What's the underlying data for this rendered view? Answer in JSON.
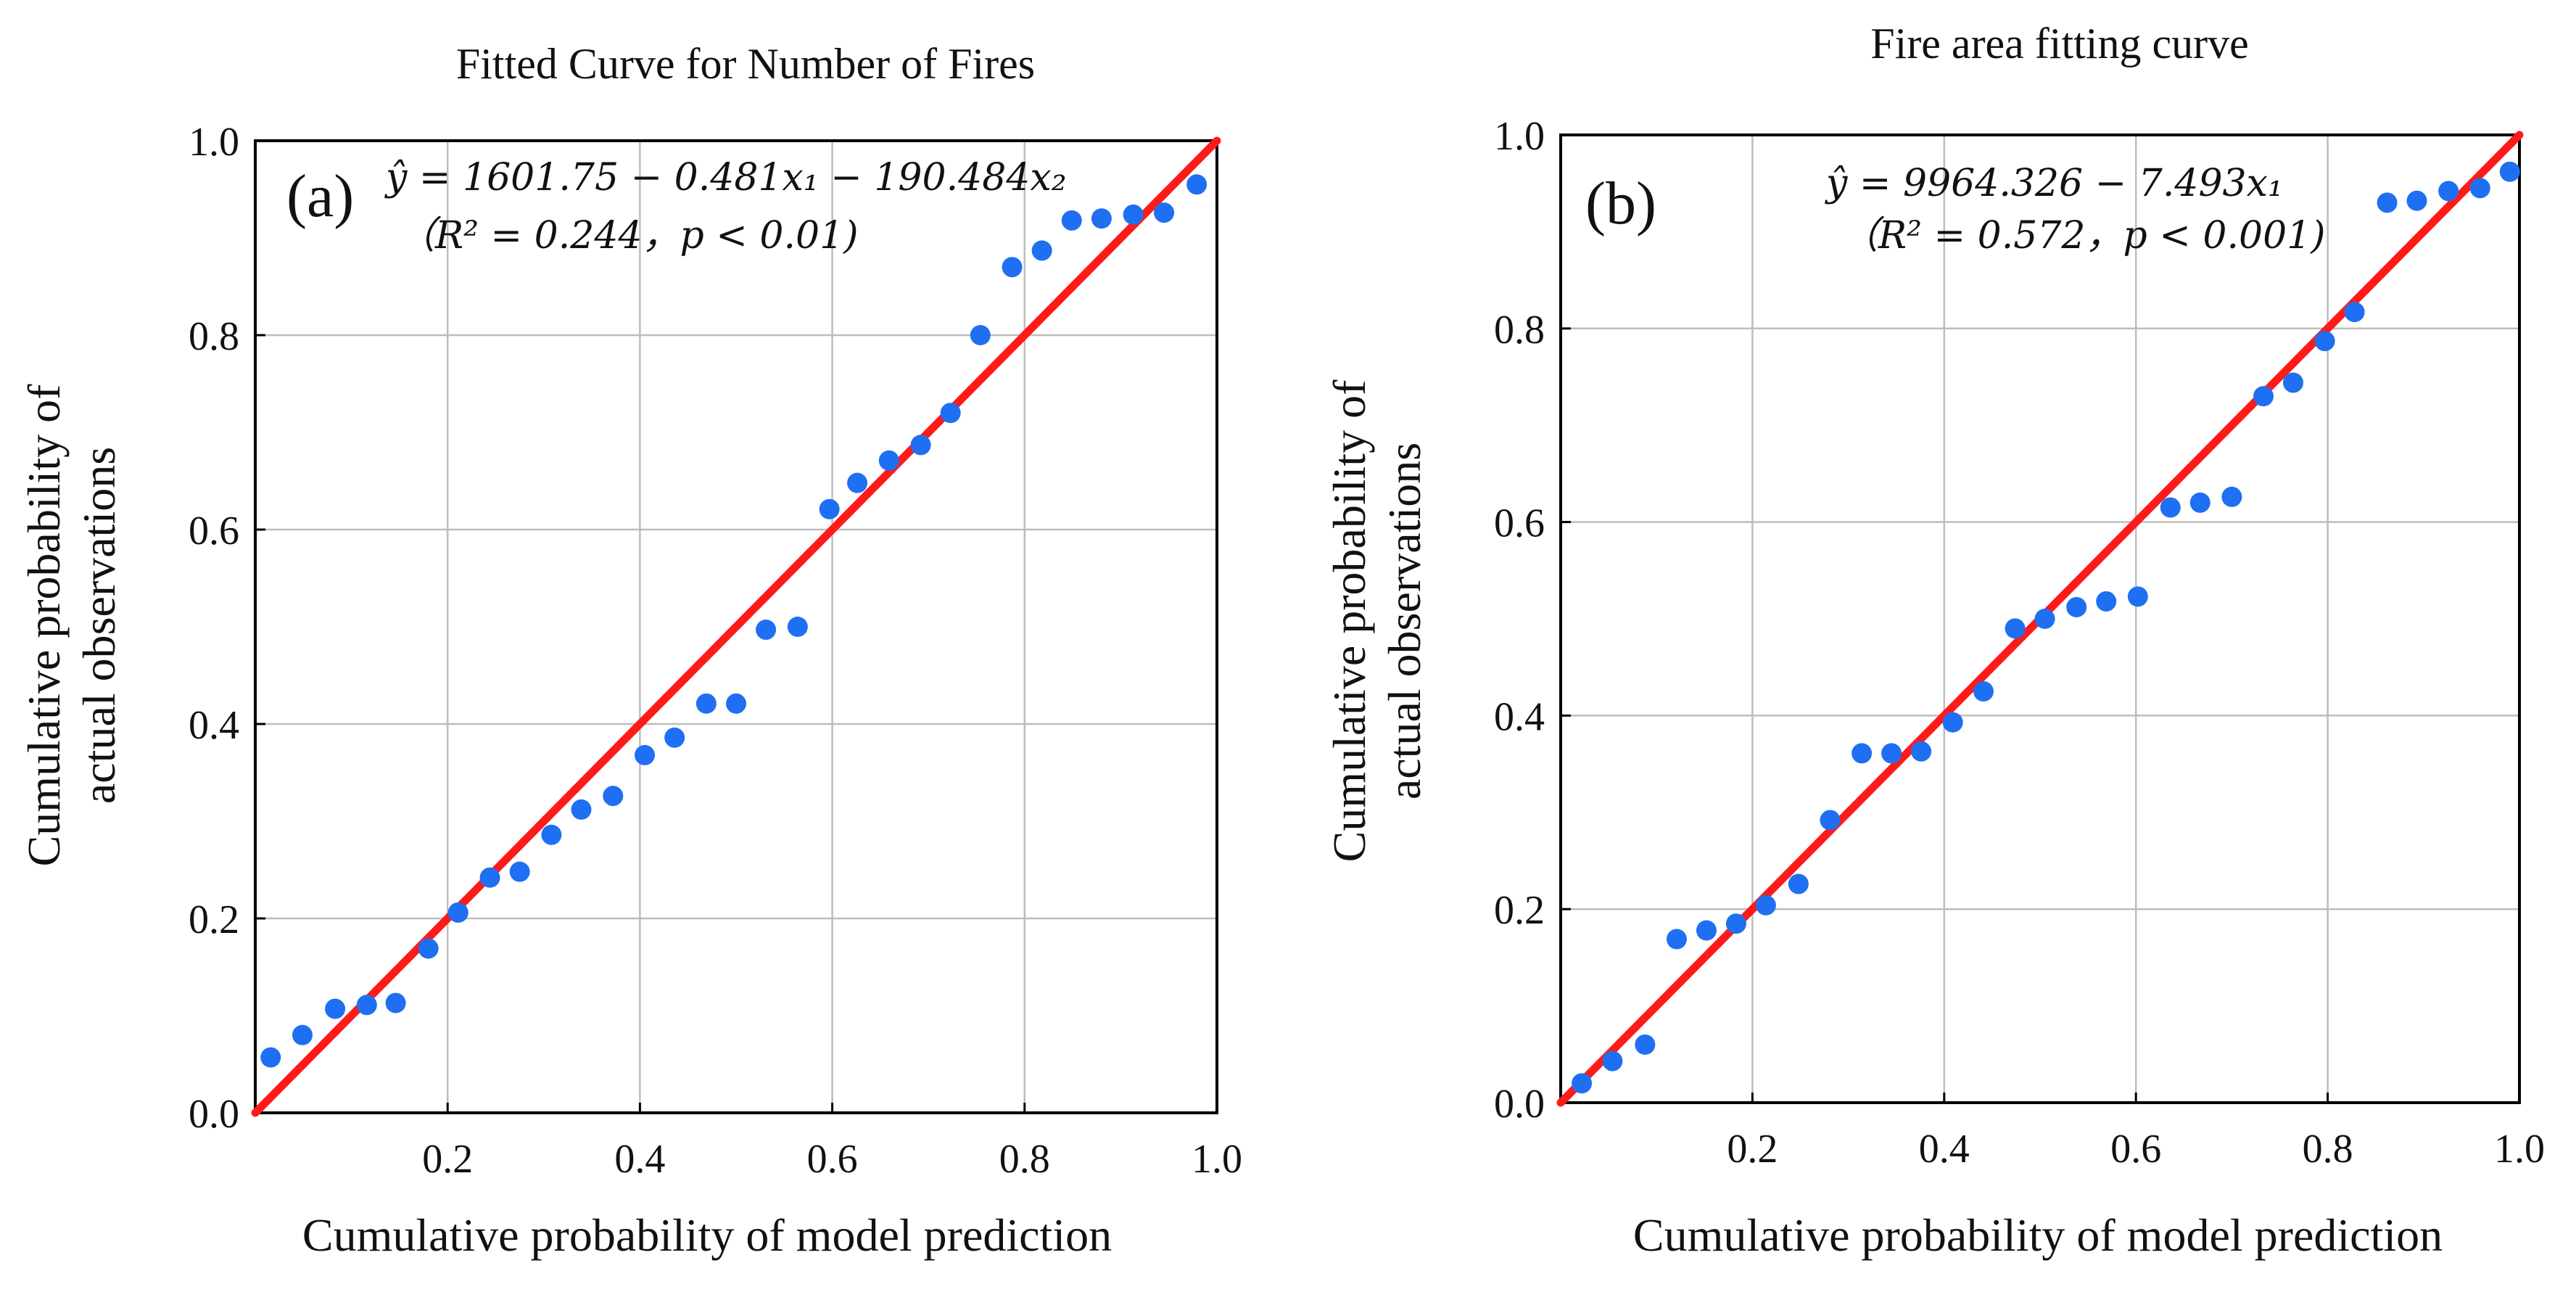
{
  "chart_data": [
    {
      "type": "scatter",
      "panel_label": "(a)",
      "title": "Fitted Curve for Number of Fires",
      "xlabel": "Cumulative probability of model prediction",
      "ylabel_line1": "Cumulative probability of",
      "ylabel_line2": "actual observations",
      "equation": "ŷ = 1601.75 − 0.481x₁ − 190.484x₂",
      "stats": "（R² = 0.244，p < 0.01)",
      "xlim": [
        0,
        1.0
      ],
      "ylim": [
        0,
        1.0
      ],
      "x_ticks": [
        "0.2",
        "0.4",
        "0.6",
        "0.8",
        "1.0"
      ],
      "y_ticks": [
        "0.0",
        "0.2",
        "0.4",
        "0.6",
        "0.8",
        "1.0"
      ],
      "grid": true,
      "reference_line": {
        "from": [
          0,
          0
        ],
        "to": [
          1,
          1
        ],
        "color": "#ff1a1a"
      },
      "point_color": "#1f6ff2",
      "points": [
        {
          "x": 0.016,
          "y": 0.057
        },
        {
          "x": 0.049,
          "y": 0.08
        },
        {
          "x": 0.083,
          "y": 0.107
        },
        {
          "x": 0.116,
          "y": 0.111
        },
        {
          "x": 0.146,
          "y": 0.113
        },
        {
          "x": 0.18,
          "y": 0.169
        },
        {
          "x": 0.211,
          "y": 0.206
        },
        {
          "x": 0.244,
          "y": 0.242
        },
        {
          "x": 0.275,
          "y": 0.248
        },
        {
          "x": 0.308,
          "y": 0.286
        },
        {
          "x": 0.339,
          "y": 0.312
        },
        {
          "x": 0.372,
          "y": 0.326
        },
        {
          "x": 0.405,
          "y": 0.368
        },
        {
          "x": 0.436,
          "y": 0.386
        },
        {
          "x": 0.469,
          "y": 0.421
        },
        {
          "x": 0.5,
          "y": 0.421
        },
        {
          "x": 0.531,
          "y": 0.497
        },
        {
          "x": 0.564,
          "y": 0.5
        },
        {
          "x": 0.597,
          "y": 0.621
        },
        {
          "x": 0.626,
          "y": 0.648
        },
        {
          "x": 0.659,
          "y": 0.671
        },
        {
          "x": 0.692,
          "y": 0.687
        },
        {
          "x": 0.723,
          "y": 0.72
        },
        {
          "x": 0.754,
          "y": 0.8
        },
        {
          "x": 0.787,
          "y": 0.87
        },
        {
          "x": 0.818,
          "y": 0.887
        },
        {
          "x": 0.849,
          "y": 0.918
        },
        {
          "x": 0.88,
          "y": 0.92
        },
        {
          "x": 0.913,
          "y": 0.924
        },
        {
          "x": 0.945,
          "y": 0.926
        },
        {
          "x": 0.979,
          "y": 0.955
        }
      ]
    },
    {
      "type": "scatter",
      "panel_label": "(b)",
      "title": "Fire area fitting curve",
      "xlabel": "Cumulative probability of model prediction",
      "ylabel_line1": "Cumulative probability of",
      "ylabel_line2": "actual observations",
      "equation": "ŷ = 9964.326 − 7.493x₁",
      "stats": "（R² = 0.572，p < 0.001)",
      "xlim": [
        0,
        1.0
      ],
      "ylim": [
        0,
        1.0
      ],
      "x_ticks": [
        "0.2",
        "0.4",
        "0.6",
        "0.8",
        "1.0"
      ],
      "y_ticks": [
        "0.0",
        "0.2",
        "0.4",
        "0.6",
        "0.8",
        "1.0"
      ],
      "grid": true,
      "reference_line": {
        "from": [
          0,
          0
        ],
        "to": [
          1,
          1
        ],
        "color": "#ff1a1a"
      },
      "point_color": "#1f6ff2",
      "points": [
        {
          "x": 0.022,
          "y": 0.02
        },
        {
          "x": 0.054,
          "y": 0.043
        },
        {
          "x": 0.088,
          "y": 0.06
        },
        {
          "x": 0.121,
          "y": 0.169
        },
        {
          "x": 0.152,
          "y": 0.178
        },
        {
          "x": 0.183,
          "y": 0.185
        },
        {
          "x": 0.214,
          "y": 0.204
        },
        {
          "x": 0.248,
          "y": 0.226
        },
        {
          "x": 0.281,
          "y": 0.292
        },
        {
          "x": 0.314,
          "y": 0.361
        },
        {
          "x": 0.345,
          "y": 0.361
        },
        {
          "x": 0.376,
          "y": 0.363
        },
        {
          "x": 0.409,
          "y": 0.393
        },
        {
          "x": 0.441,
          "y": 0.425
        },
        {
          "x": 0.474,
          "y": 0.49
        },
        {
          "x": 0.505,
          "y": 0.5
        },
        {
          "x": 0.538,
          "y": 0.512
        },
        {
          "x": 0.569,
          "y": 0.518
        },
        {
          "x": 0.602,
          "y": 0.523
        },
        {
          "x": 0.636,
          "y": 0.615
        },
        {
          "x": 0.667,
          "y": 0.62
        },
        {
          "x": 0.7,
          "y": 0.626
        },
        {
          "x": 0.733,
          "y": 0.73
        },
        {
          "x": 0.764,
          "y": 0.744
        },
        {
          "x": 0.797,
          "y": 0.787
        },
        {
          "x": 0.828,
          "y": 0.817
        },
        {
          "x": 0.862,
          "y": 0.93
        },
        {
          "x": 0.893,
          "y": 0.932
        },
        {
          "x": 0.926,
          "y": 0.942
        },
        {
          "x": 0.959,
          "y": 0.945
        },
        {
          "x": 0.99,
          "y": 0.962
        }
      ]
    }
  ]
}
